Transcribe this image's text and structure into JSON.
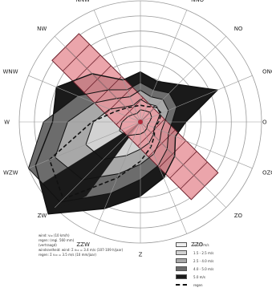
{
  "chart_data": {
    "type": "wind-rose (polar)",
    "directions": [
      "N",
      "NNO",
      "NO",
      "ONO",
      "O",
      "OZO",
      "ZO",
      "ZZO",
      "Z",
      "ZZW",
      "ZW",
      "WZW",
      "W",
      "WNW",
      "NW",
      "NNW"
    ],
    "rings": 8,
    "series": [
      {
        "values": [
          0.8,
          0.8,
          0.9,
          0.8,
          0.6,
          0.5,
          0.6,
          0.7,
          0.8,
          0.9,
          1.3,
          1.5,
          1.2,
          0.9,
          0.7,
          0.6
        ]
      },
      {
        "values": [
          1.5,
          1.3,
          1.5,
          1.4,
          1.1,
          1.0,
          1.2,
          1.5,
          1.8,
          2.4,
          3.5,
          3.9,
          3.1,
          2.2,
          1.4,
          1.2
        ]
      },
      {
        "values": [
          2.1,
          1.8,
          2.1,
          2.0,
          1.6,
          1.5,
          1.8,
          2.3,
          2.8,
          3.7,
          5.4,
          6.1,
          4.8,
          3.3,
          2.2,
          1.8
        ]
      },
      {
        "values": [
          2.6,
          2.3,
          2.7,
          2.6,
          2.1,
          2.0,
          2.5,
          3.1,
          3.8,
          5.1,
          7.5,
          8.0,
          6.4,
          4.5,
          3.0,
          2.3
        ]
      },
      {
        "values": [
          3.3,
          2.9,
          3.5,
          5.5,
          3.0,
          2.5,
          3.2,
          4.0,
          4.9,
          6.2,
          8.6,
          7.5,
          5.8,
          6.0,
          4.5,
          3.0
        ]
      }
    ],
    "dashed_series": {
      "values": [
        1.1,
        1.1,
        1.4,
        1.5,
        1.2,
        1.0,
        1.3,
        1.8,
        2.6,
        4.0,
        7.2,
        6.5,
        3.2,
        1.8,
        1.3,
        1.1
      ]
    },
    "bands": [
      {
        "direction_deg": 315,
        "length_rings": 7.0,
        "width_rings": 2.5,
        "cells_along": 7,
        "cells_across": 2
      },
      {
        "direction_deg": 135,
        "length_rings": 6.0,
        "width_rings": 2.5,
        "cells_along": 6,
        "cells_across": 2
      }
    ],
    "colors": {
      "ring": "#9a9a9a",
      "spoke": "#9a9a9a",
      "band_fill": "#e8959c",
      "band_stroke": "#6b1f2a",
      "outline": "#111111",
      "fills": [
        "#ffffff",
        "#eeeeee",
        "#d2d2d2",
        "#a8a8a8",
        "#6c6c6c",
        "#1a1a1a"
      ],
      "center": "#b02a3a"
    }
  },
  "notes": {
    "line1": "wind:  v₁₀ (10 km/h)",
    "line2": "regen: (regi. 560 mm)",
    "line3": "(vertraagd)",
    "line4": "windsnelheid:  wind: Σ v₁₀ = 3.4 m/s (107-109 h/jaar)",
    "line5": "regen: Σ v₁₀ = 3.5 m/s (10 mm/jaar)"
  },
  "legend": {
    "items": [
      "< 1.5 m/s",
      "1.5 - 2.5 m/s",
      "2.5 - 4.0 m/s",
      "4.0 - 5.0 m/s",
      "5.0 m/s",
      "regen"
    ]
  }
}
